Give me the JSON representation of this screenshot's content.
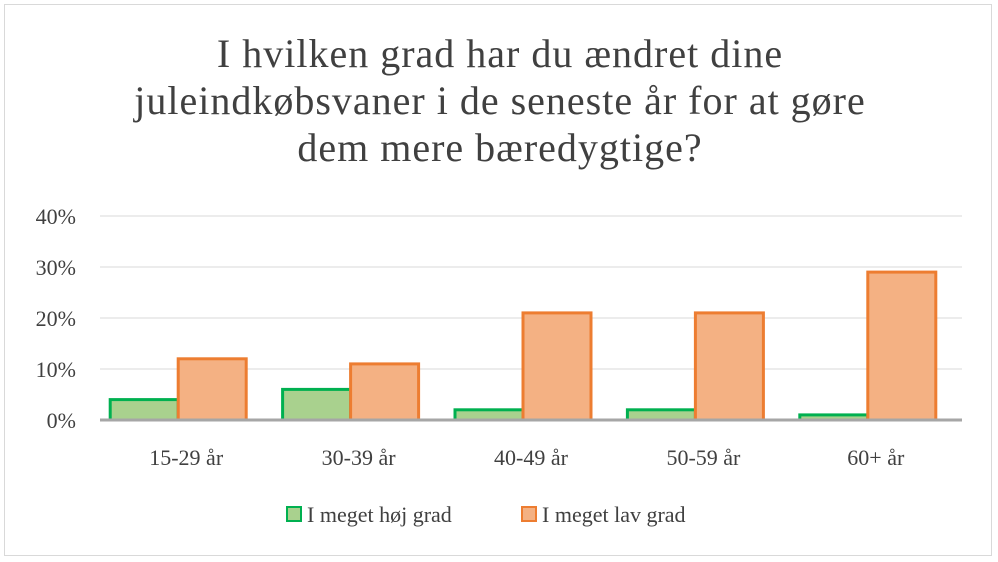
{
  "chart_data": {
    "type": "bar",
    "title": "I hvilken grad har du ændret dine juleindkøbsvaner i de seneste år for at gøre dem mere bæredygtige?",
    "categories": [
      "15-29 år",
      "30-39 år",
      "40-49 år",
      "50-59 år",
      "60+ år"
    ],
    "series": [
      {
        "name": "I meget høj grad",
        "values": [
          4,
          6,
          2,
          2,
          1
        ],
        "color": "#a9d18e",
        "stroke": "#00b050"
      },
      {
        "name": "I meget lav grad",
        "values": [
          12,
          11,
          21,
          21,
          29
        ],
        "color": "#f4b183",
        "stroke": "#ed7d31"
      }
    ],
    "yticks": [
      "0%",
      "10%",
      "20%",
      "30%",
      "40%"
    ],
    "ylim": [
      0,
      40
    ],
    "grid": true,
    "legend": "bottom"
  }
}
